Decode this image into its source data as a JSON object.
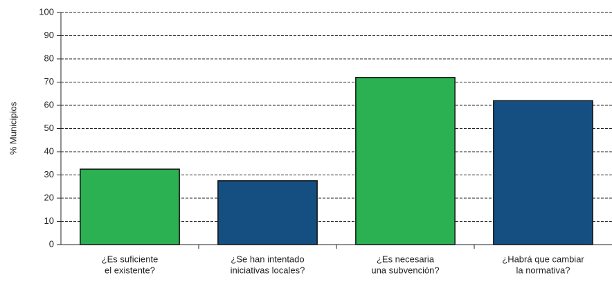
{
  "chart_data": {
    "type": "bar",
    "ylabel": "% Municipios",
    "categories": [
      [
        "¿Es suficiente",
        "el existente?"
      ],
      [
        "¿Se han intentado",
        "iniciativas locales?"
      ],
      [
        "¿Es necesaria",
        "una subvención?"
      ],
      [
        "¿Habrá que cambiar",
        "la normativa?"
      ]
    ],
    "values": [
      32.5,
      27.5,
      72,
      62
    ],
    "colors": [
      "#2bb052",
      "#154f82",
      "#2bb052",
      "#154f82"
    ],
    "ylim": [
      0,
      100
    ],
    "yticks": [
      0,
      10,
      20,
      30,
      40,
      50,
      60,
      70,
      80,
      90,
      100
    ],
    "grid": true
  }
}
